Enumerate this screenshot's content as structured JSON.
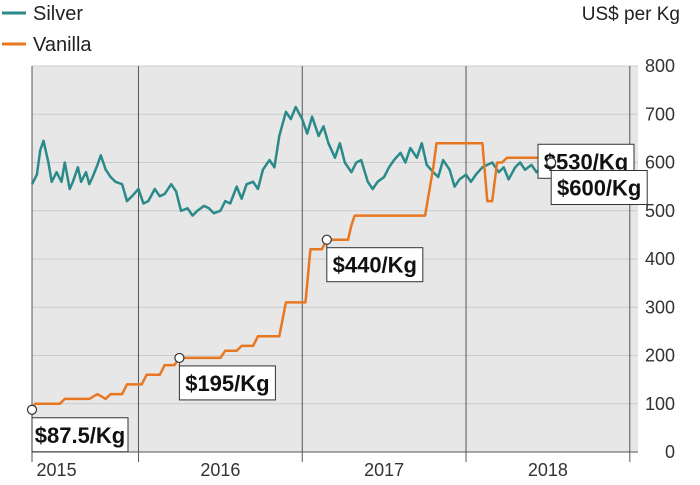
{
  "chart_data": {
    "type": "line",
    "unit_label": "US$ per Kg",
    "ylim": [
      0,
      800
    ],
    "y_ticks": [
      "0",
      "100",
      "200",
      "300",
      "400",
      "500",
      "600",
      "700",
      "800"
    ],
    "x_range": [
      2014.85,
      2018.55
    ],
    "x_ticks": [
      {
        "label": "2015",
        "x": 2015.0
      },
      {
        "label": "2016",
        "x": 2016.0
      },
      {
        "label": "2017",
        "x": 2017.0
      },
      {
        "label": "2018",
        "x": 2018.0
      }
    ],
    "year_boundaries": [
      2015.5,
      2016.5,
      2017.5,
      2018.5
    ],
    "grid": true,
    "legend_position": "top-left",
    "colors": {
      "silver": "#2a8a8a",
      "vanilla": "#e87722",
      "grid": "#cccccc",
      "background": "#e7e7e7"
    },
    "series": [
      {
        "name": "Silver",
        "color": "#2a8a8a",
        "points": [
          [
            2014.85,
            555
          ],
          [
            2014.88,
            575
          ],
          [
            2014.9,
            625
          ],
          [
            2014.92,
            645
          ],
          [
            2014.95,
            600
          ],
          [
            2014.97,
            560
          ],
          [
            2015.0,
            580
          ],
          [
            2015.03,
            560
          ],
          [
            2015.05,
            600
          ],
          [
            2015.08,
            545
          ],
          [
            2015.1,
            560
          ],
          [
            2015.13,
            590
          ],
          [
            2015.15,
            560
          ],
          [
            2015.18,
            580
          ],
          [
            2015.2,
            555
          ],
          [
            2015.22,
            570
          ],
          [
            2015.25,
            595
          ],
          [
            2015.27,
            615
          ],
          [
            2015.3,
            585
          ],
          [
            2015.33,
            570
          ],
          [
            2015.36,
            560
          ],
          [
            2015.4,
            555
          ],
          [
            2015.43,
            520
          ],
          [
            2015.46,
            530
          ],
          [
            2015.5,
            545
          ],
          [
            2015.53,
            515
          ],
          [
            2015.56,
            520
          ],
          [
            2015.6,
            545
          ],
          [
            2015.63,
            530
          ],
          [
            2015.66,
            535
          ],
          [
            2015.7,
            555
          ],
          [
            2015.73,
            540
          ],
          [
            2015.76,
            500
          ],
          [
            2015.8,
            505
          ],
          [
            2015.83,
            490
          ],
          [
            2015.86,
            500
          ],
          [
            2015.9,
            510
          ],
          [
            2015.93,
            505
          ],
          [
            2015.96,
            495
          ],
          [
            2016.0,
            500
          ],
          [
            2016.03,
            520
          ],
          [
            2016.06,
            515
          ],
          [
            2016.1,
            550
          ],
          [
            2016.13,
            525
          ],
          [
            2016.16,
            555
          ],
          [
            2016.2,
            560
          ],
          [
            2016.23,
            545
          ],
          [
            2016.26,
            585
          ],
          [
            2016.3,
            605
          ],
          [
            2016.33,
            590
          ],
          [
            2016.36,
            655
          ],
          [
            2016.4,
            705
          ],
          [
            2016.43,
            690
          ],
          [
            2016.46,
            715
          ],
          [
            2016.5,
            690
          ],
          [
            2016.53,
            660
          ],
          [
            2016.56,
            695
          ],
          [
            2016.6,
            655
          ],
          [
            2016.63,
            675
          ],
          [
            2016.66,
            640
          ],
          [
            2016.7,
            610
          ],
          [
            2016.73,
            640
          ],
          [
            2016.76,
            600
          ],
          [
            2016.8,
            580
          ],
          [
            2016.83,
            600
          ],
          [
            2016.86,
            605
          ],
          [
            2016.9,
            560
          ],
          [
            2016.93,
            545
          ],
          [
            2016.96,
            560
          ],
          [
            2017.0,
            570
          ],
          [
            2017.03,
            590
          ],
          [
            2017.06,
            605
          ],
          [
            2017.1,
            620
          ],
          [
            2017.13,
            600
          ],
          [
            2017.16,
            630
          ],
          [
            2017.2,
            610
          ],
          [
            2017.23,
            640
          ],
          [
            2017.26,
            595
          ],
          [
            2017.3,
            580
          ],
          [
            2017.33,
            570
          ],
          [
            2017.36,
            605
          ],
          [
            2017.4,
            585
          ],
          [
            2017.43,
            550
          ],
          [
            2017.46,
            565
          ],
          [
            2017.5,
            575
          ],
          [
            2017.53,
            560
          ],
          [
            2017.56,
            575
          ],
          [
            2017.6,
            590
          ],
          [
            2017.63,
            595
          ],
          [
            2017.66,
            600
          ],
          [
            2017.7,
            580
          ],
          [
            2017.73,
            590
          ],
          [
            2017.76,
            565
          ],
          [
            2017.8,
            590
          ],
          [
            2017.83,
            600
          ],
          [
            2017.86,
            585
          ],
          [
            2017.9,
            595
          ],
          [
            2017.93,
            580
          ],
          [
            2017.96,
            590
          ],
          [
            2018.0,
            600
          ],
          [
            2018.03,
            585
          ],
          [
            2018.06,
            600
          ],
          [
            2018.1,
            580
          ],
          [
            2018.13,
            590
          ],
          [
            2018.16,
            575
          ],
          [
            2018.2,
            585
          ],
          [
            2018.23,
            570
          ],
          [
            2018.26,
            590
          ],
          [
            2018.3,
            585
          ],
          [
            2018.33,
            580
          ],
          [
            2018.36,
            590
          ],
          [
            2018.4,
            575
          ],
          [
            2018.43,
            565
          ],
          [
            2018.46,
            550
          ],
          [
            2018.5,
            540
          ],
          [
            2018.55,
            530
          ]
        ]
      },
      {
        "name": "Vanilla",
        "color": "#e87722",
        "points": [
          [
            2014.85,
            90
          ],
          [
            2014.87,
            100
          ],
          [
            2015.02,
            100
          ],
          [
            2015.05,
            110
          ],
          [
            2015.2,
            110
          ],
          [
            2015.25,
            120
          ],
          [
            2015.3,
            110
          ],
          [
            2015.33,
            120
          ],
          [
            2015.4,
            120
          ],
          [
            2015.43,
            140
          ],
          [
            2015.52,
            140
          ],
          [
            2015.55,
            160
          ],
          [
            2015.63,
            160
          ],
          [
            2015.66,
            180
          ],
          [
            2015.72,
            180
          ],
          [
            2015.75,
            195
          ],
          [
            2016.0,
            195
          ],
          [
            2016.03,
            210
          ],
          [
            2016.1,
            210
          ],
          [
            2016.13,
            220
          ],
          [
            2016.2,
            220
          ],
          [
            2016.23,
            240
          ],
          [
            2016.36,
            240
          ],
          [
            2016.4,
            310
          ],
          [
            2016.52,
            310
          ],
          [
            2016.55,
            420
          ],
          [
            2016.62,
            420
          ],
          [
            2016.65,
            440
          ],
          [
            2016.78,
            440
          ],
          [
            2016.8,
            470
          ],
          [
            2016.82,
            490
          ],
          [
            2017.25,
            490
          ],
          [
            2017.3,
            590
          ],
          [
            2017.32,
            640
          ],
          [
            2017.6,
            640
          ],
          [
            2017.63,
            520
          ],
          [
            2017.66,
            520
          ],
          [
            2017.69,
            600
          ],
          [
            2017.72,
            600
          ],
          [
            2017.75,
            610
          ],
          [
            2017.95,
            610
          ],
          [
            2017.97,
            590
          ],
          [
            2018.0,
            590
          ],
          [
            2018.02,
            600
          ],
          [
            2018.4,
            600
          ],
          [
            2018.43,
            540
          ],
          [
            2018.5,
            540
          ],
          [
            2018.52,
            560
          ],
          [
            2018.55,
            560
          ]
        ]
      }
    ],
    "callouts": [
      {
        "text": "$87.5/Kg",
        "x": 2014.85,
        "y": 87.5,
        "series": "Vanilla",
        "placement": "below-right"
      },
      {
        "text": "$195/Kg",
        "x": 2015.75,
        "y": 195,
        "series": "Vanilla",
        "placement": "below-right"
      },
      {
        "text": "$440/Kg",
        "x": 2016.65,
        "y": 440,
        "series": "Vanilla",
        "placement": "below-right"
      },
      {
        "text": "$530/Kg",
        "x": 2018.55,
        "y": 530,
        "series": "Silver",
        "placement": "upper-left"
      },
      {
        "text": "$600/Kg",
        "x": 2018.02,
        "y": 600,
        "series": "Vanilla",
        "placement": "below-right"
      }
    ]
  }
}
